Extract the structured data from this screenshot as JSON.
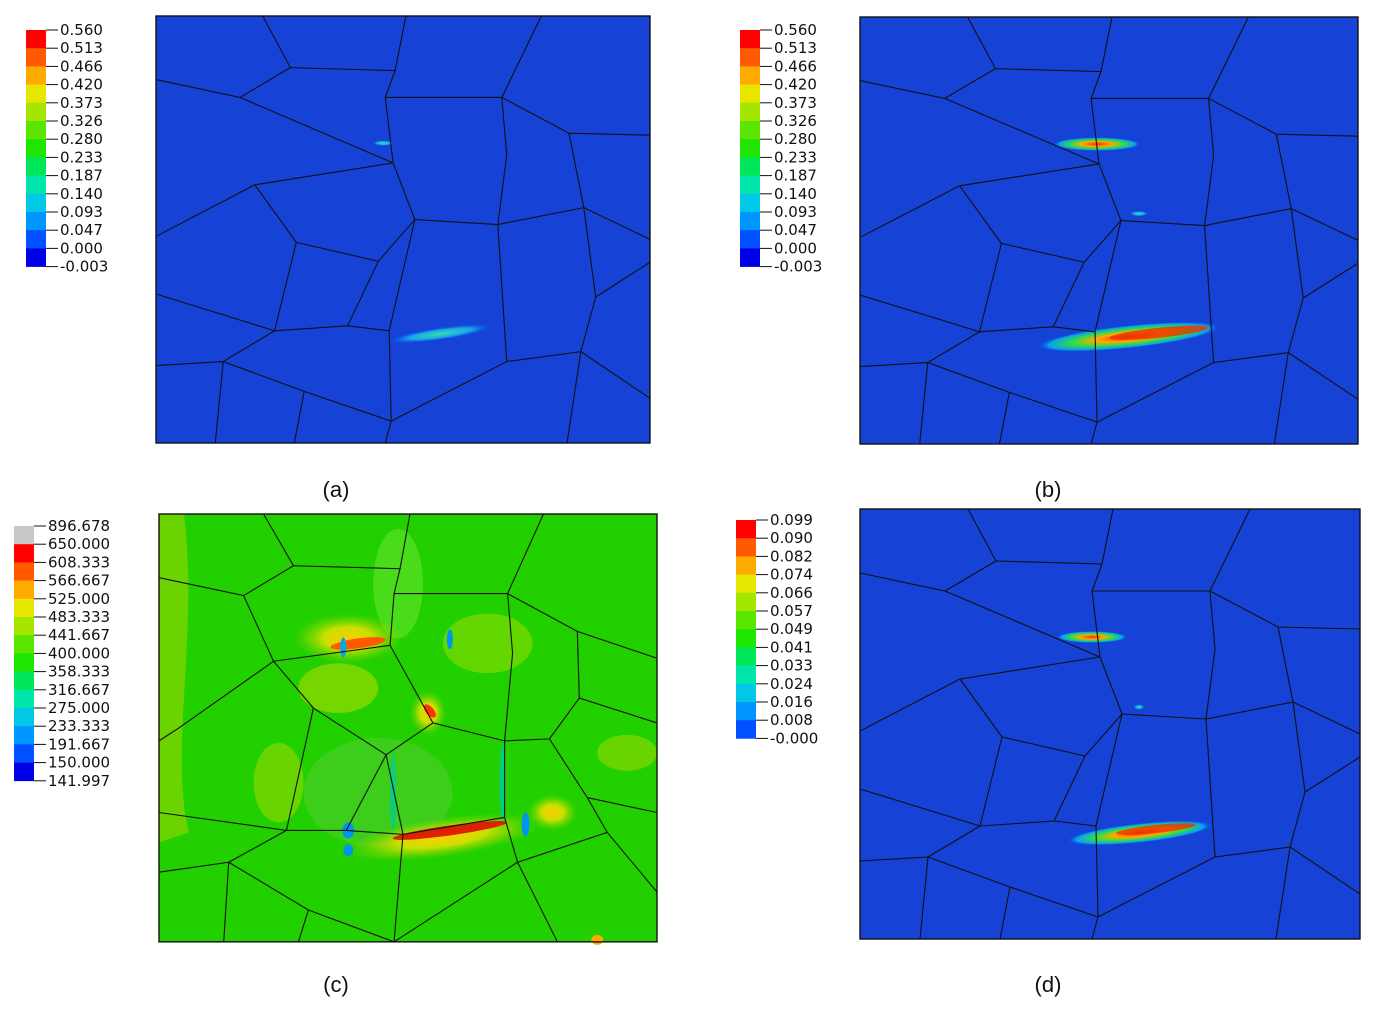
{
  "panels": [
    {
      "caption": "(a)",
      "labels": [
        "0.560",
        "0.513",
        "0.466",
        "0.420",
        "0.373",
        "0.326",
        "0.280",
        "0.233",
        "0.187",
        "0.140",
        "0.093",
        "0.047",
        "0.000",
        "-0.003"
      ],
      "colors": [
        "#ff0000",
        "#ff5a00",
        "#ffaa00",
        "#e6e600",
        "#a5e600",
        "#5ae600",
        "#1ee600",
        "#00e65a",
        "#00e6aa",
        "#00c8e6",
        "#0096ff",
        "#0050ff",
        "#0000e6",
        "#444444"
      ]
    },
    {
      "caption": "(b)",
      "labels": [
        "0.560",
        "0.513",
        "0.466",
        "0.420",
        "0.373",
        "0.326",
        "0.280",
        "0.233",
        "0.187",
        "0.140",
        "0.093",
        "0.047",
        "0.000",
        "-0.003"
      ],
      "colors": [
        "#ff0000",
        "#ff5a00",
        "#ffaa00",
        "#e6e600",
        "#a5e600",
        "#5ae600",
        "#1ee600",
        "#00e65a",
        "#00e6aa",
        "#00c8e6",
        "#0096ff",
        "#0050ff",
        "#0000e6",
        "#444444"
      ]
    },
    {
      "caption": "(c)",
      "labels": [
        "896.678",
        "650.000",
        "608.333",
        "566.667",
        "525.000",
        "483.333",
        "441.667",
        "400.000",
        "358.333",
        "316.667",
        "275.000",
        "233.333",
        "191.667",
        "150.000",
        "141.997"
      ],
      "colors": [
        "#c8c8c8",
        "#ff0000",
        "#ff5a00",
        "#ffaa00",
        "#e6e600",
        "#a5e600",
        "#5ae600",
        "#1ee600",
        "#00e65a",
        "#00e6aa",
        "#00c8e6",
        "#0096ff",
        "#0050ff",
        "#0000e6",
        "#444444"
      ]
    },
    {
      "caption": "(d)",
      "labels": [
        "0.099",
        "0.090",
        "0.082",
        "0.074",
        "0.066",
        "0.057",
        "0.049",
        "0.041",
        "0.033",
        "0.024",
        "0.016",
        "0.008",
        "-0.000"
      ],
      "colors": [
        "#ff0000",
        "#ff5a00",
        "#ffaa00",
        "#e6e600",
        "#a5e600",
        "#5ae600",
        "#1ee600",
        "#00e65a",
        "#00e6aa",
        "#00c8e6",
        "#0096ff",
        "#0050ff",
        "#0000e6"
      ]
    }
  ]
}
